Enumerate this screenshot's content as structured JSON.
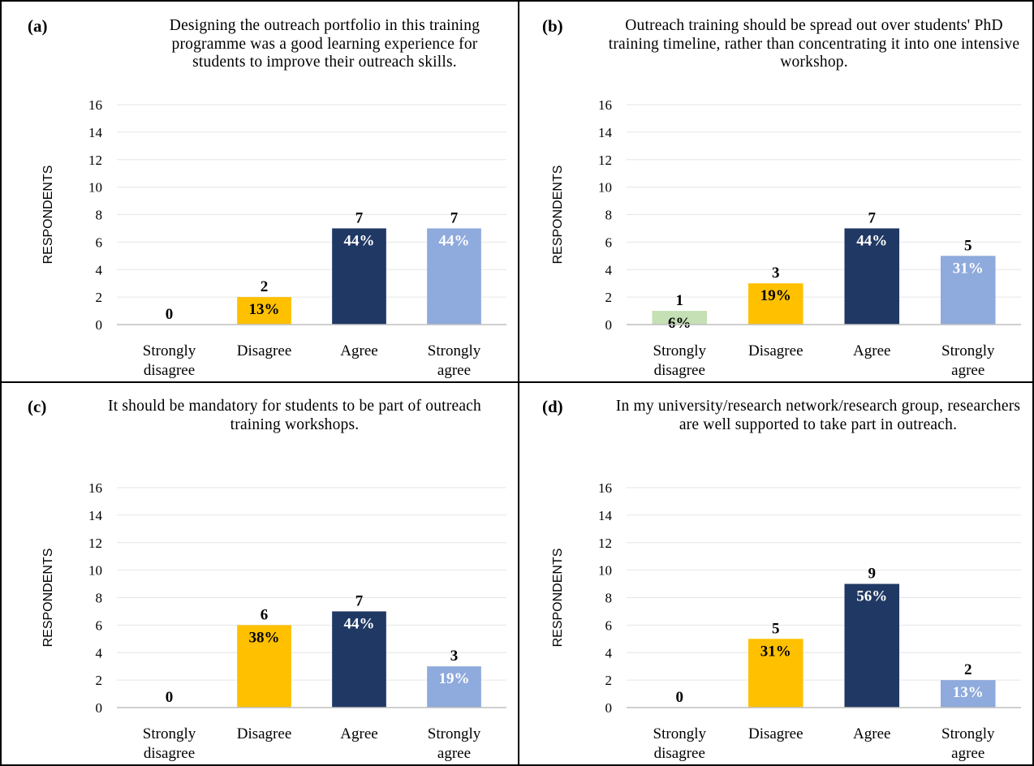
{
  "chart_data": [
    {
      "panel": "(a)",
      "type": "bar",
      "title": "Designing the outreach portfolio in this training programme was a good learning experience for students to improve their outreach skills.",
      "xlabel": "",
      "ylabel": "RESPONDENTS",
      "ylim": [
        0,
        16
      ],
      "yticks": [
        0,
        2,
        4,
        6,
        8,
        10,
        12,
        14,
        16
      ],
      "grid": true,
      "categories": [
        "Strongly disagree",
        "Disagree",
        "Agree",
        "Strongly agree"
      ],
      "values": [
        0,
        2,
        7,
        7
      ],
      "percent_labels": [
        "",
        "13%",
        "44%",
        "44%"
      ]
    },
    {
      "panel": "(b)",
      "type": "bar",
      "title": "Outreach training should be spread out over students' PhD training timeline, rather than concentrating it into one intensive workshop.",
      "xlabel": "",
      "ylabel": "RESPONDENTS",
      "ylim": [
        0,
        16
      ],
      "yticks": [
        0,
        2,
        4,
        6,
        8,
        10,
        12,
        14,
        16
      ],
      "grid": true,
      "categories": [
        "Strongly disagree",
        "Disagree",
        "Agree",
        "Strongly agree"
      ],
      "values": [
        1,
        3,
        7,
        5
      ],
      "percent_labels": [
        "6%",
        "19%",
        "44%",
        "31%"
      ]
    },
    {
      "panel": "(c)",
      "type": "bar",
      "title": "It should be mandatory for students to be part of outreach training workshops.",
      "xlabel": "",
      "ylabel": "RESPONDENTS",
      "ylim": [
        0,
        16
      ],
      "yticks": [
        0,
        2,
        4,
        6,
        8,
        10,
        12,
        14,
        16
      ],
      "grid": true,
      "categories": [
        "Strongly disagree",
        "Disagree",
        "Agree",
        "Strongly agree"
      ],
      "values": [
        0,
        6,
        7,
        3
      ],
      "percent_labels": [
        "",
        "38%",
        "44%",
        "19%"
      ]
    },
    {
      "panel": "(d)",
      "type": "bar",
      "title": "In my university/research network/research group, researchers are well supported to take part in outreach.",
      "xlabel": "",
      "ylabel": "RESPONDENTS",
      "ylim": [
        0,
        16
      ],
      "yticks": [
        0,
        2,
        4,
        6,
        8,
        10,
        12,
        14,
        16
      ],
      "grid": true,
      "categories": [
        "Strongly disagree",
        "Disagree",
        "Agree",
        "Strongly agree"
      ],
      "values": [
        0,
        5,
        9,
        2
      ],
      "percent_labels": [
        "",
        "31%",
        "56%",
        "13%"
      ]
    }
  ],
  "colors": {
    "strongly_disagree": "#c5e0b4",
    "disagree": "#ffc000",
    "agree": "#203864",
    "strongly_agree": "#8faadc",
    "grid": "#e6e6e6",
    "axis": "#bfbfbf"
  }
}
